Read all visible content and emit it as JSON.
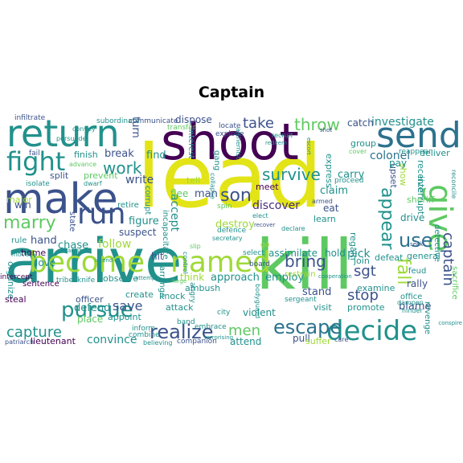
{
  "title": "Captain",
  "palette": {
    "yellow": "#e2e418",
    "yellow_green": "#9fd938",
    "green": "#5ec962",
    "teal_green": "#2fb47c",
    "teal": "#21918c",
    "blue": "#2c728e",
    "indigo": "#3b528b",
    "purple": "#472d7b",
    "dark_purple": "#440154"
  },
  "words": [
    {
      "id": "lead",
      "text": "lead"
    },
    {
      "id": "arrive",
      "text": "arrive"
    },
    {
      "id": "kill",
      "text": "kill"
    },
    {
      "id": "shoot",
      "text": "shoot"
    },
    {
      "id": "make",
      "text": "make"
    },
    {
      "id": "return",
      "text": "return"
    },
    {
      "id": "become",
      "text": "become"
    },
    {
      "id": "named",
      "text": "named"
    },
    {
      "id": "send",
      "text": "send"
    },
    {
      "id": "give",
      "text": "give"
    },
    {
      "id": "fight",
      "text": "fight"
    },
    {
      "id": "run",
      "text": "run"
    },
    {
      "id": "decide",
      "text": "decide"
    },
    {
      "id": "escape",
      "text": "escape"
    },
    {
      "id": "pursue",
      "text": "pursue"
    },
    {
      "id": "realize",
      "text": "realize"
    },
    {
      "id": "capture",
      "text": "capture"
    },
    {
      "id": "marry",
      "text": "marry"
    },
    {
      "id": "use",
      "text": "use"
    },
    {
      "id": "appear",
      "text": "appear"
    },
    {
      "id": "fall",
      "text": "fall"
    },
    {
      "id": "work",
      "text": "work"
    },
    {
      "id": "son",
      "text": "son"
    },
    {
      "id": "take",
      "text": "take"
    },
    {
      "id": "throw",
      "text": "throw"
    },
    {
      "id": "survive",
      "text": "survive"
    },
    {
      "id": "bring",
      "text": "bring"
    },
    {
      "id": "men",
      "text": "men"
    },
    {
      "id": "stop",
      "text": "stop"
    },
    {
      "id": "sgt",
      "text": "sgt"
    },
    {
      "id": "captain",
      "text": "captain"
    },
    {
      "id": "investigate",
      "text": "investigate"
    },
    {
      "id": "colonel",
      "text": "colonel"
    },
    {
      "id": "save",
      "text": "save"
    },
    {
      "id": "convince",
      "text": "convince"
    },
    {
      "id": "accept",
      "text": "accept"
    },
    {
      "id": "destroy",
      "text": "destroy"
    },
    {
      "id": "discover",
      "text": "discover"
    },
    {
      "id": "figure",
      "text": "figure"
    },
    {
      "id": "follow",
      "text": "follow"
    },
    {
      "id": "find",
      "text": "find"
    },
    {
      "id": "break",
      "text": "break"
    },
    {
      "id": "write",
      "text": "write"
    },
    {
      "id": "hand",
      "text": "hand"
    },
    {
      "id": "chase",
      "text": "chase"
    },
    {
      "id": "home",
      "text": "home"
    },
    {
      "id": "love",
      "text": "love"
    },
    {
      "id": "assimilate",
      "text": "assimilate"
    },
    {
      "id": "hold",
      "text": "hold"
    },
    {
      "id": "pick",
      "text": "pick"
    },
    {
      "id": "approach",
      "text": "approach"
    },
    {
      "id": "employ",
      "text": "employ"
    },
    {
      "id": "defend",
      "text": "defend"
    },
    {
      "id": "officer",
      "text": "officer"
    },
    {
      "id": "place",
      "text": "place"
    },
    {
      "id": "lieutenant",
      "text": "lieutenant"
    },
    {
      "id": "attend",
      "text": "attend"
    },
    {
      "id": "violent",
      "text": "violent"
    },
    {
      "id": "stand",
      "text": "stand"
    },
    {
      "id": "blame",
      "text": "blame"
    },
    {
      "id": "rally",
      "text": "rally"
    },
    {
      "id": "drive",
      "text": "drive"
    },
    {
      "id": "sheriff",
      "text": "sheriff"
    },
    {
      "id": "interrupt",
      "text": "interrupt"
    },
    {
      "id": "show",
      "text": "show"
    },
    {
      "id": "upset",
      "text": "upset"
    },
    {
      "id": "carry",
      "text": "carry"
    },
    {
      "id": "claim",
      "text": "claim"
    },
    {
      "id": "meet",
      "text": "meet"
    },
    {
      "id": "dispose",
      "text": "dispose"
    },
    {
      "id": "turn",
      "text": "turn"
    },
    {
      "id": "man",
      "text": "man"
    },
    {
      "id": "flee",
      "text": "flee"
    },
    {
      "id": "tell",
      "text": "tell"
    },
    {
      "id": "win",
      "text": "win"
    },
    {
      "id": "split",
      "text": "split"
    },
    {
      "id": "prevent",
      "text": "prevent"
    },
    {
      "id": "suspect",
      "text": "suspect"
    },
    {
      "id": "hit",
      "text": "hit"
    },
    {
      "id": "think",
      "text": "think"
    },
    {
      "id": "ambush",
      "text": "ambush"
    },
    {
      "id": "attack",
      "text": "attack"
    },
    {
      "id": "knock",
      "text": "knock"
    },
    {
      "id": "create",
      "text": "create"
    },
    {
      "id": "observe",
      "text": "observe"
    },
    {
      "id": "appoint",
      "text": "appoint"
    },
    {
      "id": "catch",
      "text": "catch"
    },
    {
      "id": "group",
      "text": "group"
    },
    {
      "id": "deliver",
      "text": "deliver"
    },
    {
      "id": "receive",
      "text": "receive"
    },
    {
      "id": "pay",
      "text": "pay"
    },
    {
      "id": "join",
      "text": "join"
    },
    {
      "id": "examine",
      "text": "examine"
    },
    {
      "id": "promote",
      "text": "promote"
    },
    {
      "id": "visit",
      "text": "visit"
    },
    {
      "id": "pull",
      "text": "pull"
    },
    {
      "id": "suffer",
      "text": "suffer"
    },
    {
      "id": "general",
      "text": "general"
    },
    {
      "id": "defeat",
      "text": "defeat"
    },
    {
      "id": "feud",
      "text": "feud"
    },
    {
      "id": "office",
      "text": "office"
    },
    {
      "id": "regain",
      "text": "regain"
    },
    {
      "id": "express",
      "text": "express"
    },
    {
      "id": "learn",
      "text": "learn"
    },
    {
      "id": "eat",
      "text": "eat"
    },
    {
      "id": "restrain",
      "text": "restrain"
    },
    {
      "id": "sacrifice",
      "text": "sacrifice"
    },
    {
      "id": "detective",
      "text": "detective"
    },
    {
      "id": "revenge",
      "text": "revenge"
    },
    {
      "id": "reappear",
      "text": "reappear"
    },
    {
      "id": "organize",
      "text": "organize"
    },
    {
      "id": "major",
      "text": "major"
    },
    {
      "id": "steal",
      "text": "steal"
    },
    {
      "id": "retire",
      "text": "retire"
    },
    {
      "id": "state",
      "text": "state"
    },
    {
      "id": "corrupt",
      "text": "corrupt"
    },
    {
      "id": "incapacitate",
      "text": "incapacitate"
    },
    {
      "id": "arrange",
      "text": "arrange"
    },
    {
      "id": "interest",
      "text": "interest"
    },
    {
      "id": "gang",
      "text": "gang"
    },
    {
      "id": "finish",
      "text": "finish"
    },
    {
      "id": "rule",
      "text": "rule"
    },
    {
      "id": "sentence",
      "text": "sentence"
    },
    {
      "id": "intercept",
      "text": "intercept"
    },
    {
      "id": "infiltrate",
      "text": "infiltrate"
    },
    {
      "id": "subordinate",
      "text": "subordinate"
    },
    {
      "id": "communicate",
      "text": "communicate"
    },
    {
      "id": "transfer",
      "text": "transfer"
    },
    {
      "id": "locate",
      "text": "locate"
    },
    {
      "id": "explode",
      "text": "explode"
    },
    {
      "id": "recruit",
      "text": "recruit"
    },
    {
      "id": "board",
      "text": "board"
    },
    {
      "id": "select",
      "text": "select"
    },
    {
      "id": "city",
      "text": "city"
    },
    {
      "id": "band",
      "text": "band"
    },
    {
      "id": "embrace",
      "text": "embrace"
    },
    {
      "id": "combine",
      "text": "combine"
    },
    {
      "id": "inform",
      "text": "inform"
    },
    {
      "id": "companion",
      "text": "companion"
    },
    {
      "id": "believing",
      "text": "believing"
    },
    {
      "id": "care",
      "text": "care"
    },
    {
      "id": "sergeant",
      "text": "sergeant"
    },
    {
      "id": "proceed",
      "text": "proceed"
    },
    {
      "id": "armed",
      "text": "armed"
    },
    {
      "id": "declare",
      "text": "declare"
    },
    {
      "id": "spin",
      "text": "spin"
    },
    {
      "id": "defence",
      "text": "defence"
    },
    {
      "id": "secretary",
      "text": "secretary"
    },
    {
      "id": "elect",
      "text": "elect"
    },
    {
      "id": "cover",
      "text": "cover"
    },
    {
      "id": "hinder",
      "text": "hinder"
    },
    {
      "id": "dampen",
      "text": "dampen"
    },
    {
      "id": "patriarch",
      "text": "patriarch"
    },
    {
      "id": "angry",
      "text": "angry"
    },
    {
      "id": "go",
      "text": "go"
    },
    {
      "id": "tribe",
      "text": "tribe"
    },
    {
      "id": "knife",
      "text": "knife"
    },
    {
      "id": "move",
      "text": "move"
    },
    {
      "id": "isolate",
      "text": "isolate"
    },
    {
      "id": "dwarf",
      "text": "dwarf"
    },
    {
      "id": "fail",
      "text": "fail"
    },
    {
      "id": "convey",
      "text": "convey"
    },
    {
      "id": "persuade",
      "text": "persuade"
    },
    {
      "id": "advance",
      "text": "advance"
    },
    {
      "id": "alchemist",
      "text": "alchemist"
    },
    {
      "id": "bodyguard",
      "text": "bodyguard"
    },
    {
      "id": "cooperation",
      "text": "cooperation"
    },
    {
      "id": "conspire",
      "text": "conspire"
    },
    {
      "id": "terrorising",
      "text": "terrorising"
    },
    {
      "id": "forge",
      "text": "forge"
    },
    {
      "id": "control",
      "text": "control"
    },
    {
      "id": "collapse",
      "text": "collapse"
    },
    {
      "id": "slip",
      "text": "slip"
    },
    {
      "id": "reconcile",
      "text": "reconcile"
    },
    {
      "id": "redeem",
      "text": "redeem"
    },
    {
      "id": "recover",
      "text": "recover"
    },
    {
      "id": "shot",
      "text": "shot"
    },
    {
      "id": "escort",
      "text": "escort"
    },
    {
      "id": "seek",
      "text": "seek"
    },
    {
      "id": "vanish",
      "text": "vanish"
    },
    {
      "id": "intend",
      "text": "intend"
    },
    {
      "id": "attempt",
      "text": "attempt"
    }
  ]
}
